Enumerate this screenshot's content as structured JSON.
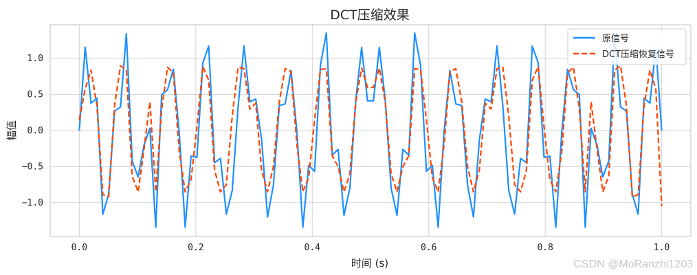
{
  "chart_data": {
    "type": "line",
    "title": "DCT压缩效果",
    "xlabel": "时间 (s)",
    "ylabel": "幅值",
    "xlim": [
      -0.05,
      1.05
    ],
    "ylim": [
      -1.47,
      1.47
    ],
    "x_ticks": [
      0.0,
      0.2,
      0.4,
      0.6,
      0.8,
      1.0
    ],
    "x_tick_labels": [
      "0.0",
      "0.2",
      "0.4",
      "0.6",
      "0.8",
      "1.0"
    ],
    "y_ticks": [
      -1.0,
      -0.5,
      0.0,
      0.5,
      1.0
    ],
    "y_tick_labels": [
      "−1.0",
      "−0.5",
      "0.0",
      "0.5",
      "1.0"
    ],
    "grid": true,
    "legend_position": "top-right",
    "x": [
      0.0,
      0.0101,
      0.0202,
      0.0303,
      0.0404,
      0.0505,
      0.0606,
      0.0707,
      0.0808,
      0.0909,
      0.101,
      0.1111,
      0.1212,
      0.1313,
      0.1414,
      0.1515,
      0.1616,
      0.1717,
      0.1818,
      0.1919,
      0.202,
      0.2121,
      0.2222,
      0.2323,
      0.2424,
      0.2525,
      0.2626,
      0.2727,
      0.2828,
      0.2929,
      0.303,
      0.3131,
      0.3232,
      0.3333,
      0.3434,
      0.3535,
      0.3636,
      0.3737,
      0.3838,
      0.3939,
      0.404,
      0.4141,
      0.4242,
      0.4343,
      0.4444,
      0.4545,
      0.4646,
      0.4747,
      0.4848,
      0.4949,
      0.5051,
      0.5152,
      0.5253,
      0.5354,
      0.5455,
      0.5556,
      0.5657,
      0.5758,
      0.5859,
      0.596,
      0.6061,
      0.6162,
      0.6263,
      0.6364,
      0.6465,
      0.6566,
      0.6667,
      0.6768,
      0.6869,
      0.697,
      0.7071,
      0.7172,
      0.7273,
      0.7374,
      0.7475,
      0.7576,
      0.7677,
      0.7778,
      0.7879,
      0.798,
      0.8081,
      0.8182,
      0.8283,
      0.8384,
      0.8485,
      0.8586,
      0.8687,
      0.8788,
      0.8889,
      0.899,
      0.9091,
      0.9192,
      0.9293,
      0.9394,
      0.9495,
      0.9596,
      0.9697,
      0.9798,
      0.9899,
      1.0
    ],
    "series": [
      {
        "name": "原信号",
        "color": "#1e90ff",
        "style": "solid",
        "values": [
          0.0,
          1.159,
          0.381,
          0.451,
          -1.161,
          -0.881,
          0.272,
          0.328,
          1.345,
          -0.421,
          -0.645,
          -0.199,
          0.032,
          -1.343,
          0.5,
          0.569,
          0.853,
          -0.035,
          -1.342,
          -0.354,
          -0.371,
          0.943,
          1.173,
          -0.444,
          -0.386,
          -1.159,
          -0.832,
          0.337,
          1.175,
          0.401,
          0.439,
          -0.128,
          -1.2,
          -0.759,
          0.349,
          0.37,
          0.834,
          -0.022,
          -1.341,
          -0.483,
          -0.565,
          0.912,
          1.356,
          -0.339,
          -0.261,
          -1.174,
          -0.798,
          0.425,
          1.156,
          0.414,
          0.414,
          1.156,
          0.425,
          -0.798,
          -1.174,
          -0.261,
          -0.339,
          1.356,
          0.912,
          -0.565,
          -0.483,
          -1.341,
          -0.022,
          0.834,
          0.37,
          0.349,
          -0.759,
          -1.2,
          -0.128,
          0.439,
          0.401,
          1.175,
          0.337,
          -0.832,
          -1.159,
          -0.386,
          -0.444,
          1.173,
          0.943,
          -0.371,
          -0.354,
          -1.342,
          -0.035,
          0.853,
          0.569,
          0.5,
          -1.343,
          0.032,
          -0.199,
          -0.645,
          -0.421,
          1.345,
          0.328,
          0.272,
          -0.881,
          -1.161,
          0.451,
          0.381,
          1.159,
          0.0
        ]
      },
      {
        "name": "DCT压缩恢复信号",
        "color": "#ff4500",
        "style": "dashed",
        "values": [
          0.15,
          0.58,
          0.84,
          0.35,
          -0.89,
          -0.92,
          0.35,
          0.9,
          0.84,
          -0.63,
          -0.85,
          -0.26,
          0.4,
          -0.85,
          0.3,
          0.88,
          0.8,
          -0.3,
          -0.85,
          -0.68,
          0.05,
          0.89,
          0.7,
          -0.55,
          -0.85,
          -0.75,
          0.2,
          0.88,
          0.86,
          0.3,
          0.38,
          -0.55,
          -0.85,
          -0.5,
          0.4,
          0.86,
          0.82,
          -0.2,
          -0.85,
          -0.65,
          0.15,
          0.85,
          0.86,
          -0.35,
          -0.5,
          -0.85,
          -0.6,
          0.4,
          0.87,
          0.6,
          0.6,
          0.87,
          0.4,
          -0.6,
          -0.85,
          -0.5,
          -0.35,
          0.86,
          0.85,
          0.15,
          -0.65,
          -0.85,
          -0.2,
          0.82,
          0.86,
          0.4,
          -0.5,
          -0.85,
          -0.55,
          0.38,
          0.3,
          0.86,
          0.88,
          0.2,
          -0.75,
          -0.85,
          -0.55,
          0.7,
          0.89,
          0.05,
          -0.68,
          -0.85,
          -0.3,
          0.8,
          0.88,
          0.3,
          -0.85,
          0.4,
          -0.26,
          -0.85,
          -0.63,
          0.84,
          0.9,
          0.35,
          -0.92,
          -0.89,
          0.35,
          0.84,
          0.58,
          -1.05
        ]
      }
    ]
  },
  "watermark": "CSDN @MoRanzhi1203"
}
